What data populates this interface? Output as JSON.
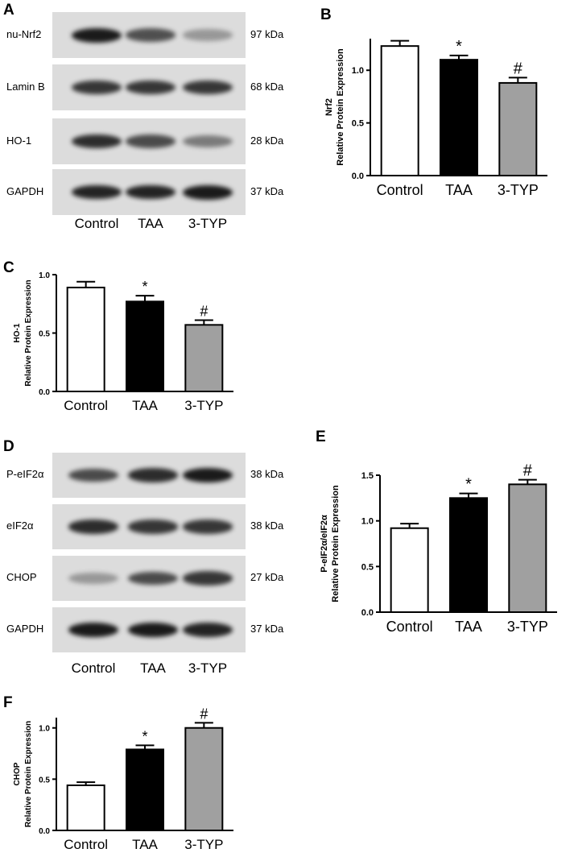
{
  "panel_letters": [
    "A",
    "B",
    "C",
    "D",
    "E",
    "F"
  ],
  "blot_A": {
    "lanes": [
      "Control",
      "TAA",
      "3-TYP"
    ],
    "rows": [
      {
        "protein": "nu-Nrf2",
        "kda": "97 kDa",
        "band_intensity": [
          1.0,
          0.72,
          0.35
        ]
      },
      {
        "protein": "Lamin B",
        "kda": "68 kDa",
        "band_intensity": [
          0.85,
          0.85,
          0.85
        ]
      },
      {
        "protein": "HO-1",
        "kda": "28 kDa",
        "band_intensity": [
          0.9,
          0.75,
          0.5
        ]
      },
      {
        "protein": "GAPDH",
        "kda": "37 kDa",
        "band_intensity": [
          0.95,
          0.95,
          1.0
        ]
      }
    ]
  },
  "blot_D": {
    "lanes": [
      "Control",
      "TAA",
      "3-TYP"
    ],
    "rows": [
      {
        "protein": "P-eIF2α",
        "kda": "38 kDa",
        "band_intensity": [
          0.75,
          0.9,
          1.0
        ]
      },
      {
        "protein": "eIF2α",
        "kda": "38 kDa",
        "band_intensity": [
          0.9,
          0.85,
          0.85
        ]
      },
      {
        "protein": "CHOP",
        "kda": "27 kDa",
        "band_intensity": [
          0.35,
          0.75,
          0.85
        ]
      },
      {
        "protein": "GAPDH",
        "kda": "37 kDa",
        "band_intensity": [
          1.0,
          1.0,
          0.95
        ]
      }
    ]
  },
  "chart_data": [
    {
      "panel": "B",
      "type": "bar",
      "categories": [
        "Control",
        "TAA",
        "3-TYP"
      ],
      "values": [
        1.23,
        1.1,
        0.88
      ],
      "errors": [
        0.05,
        0.04,
        0.05
      ],
      "annotations": [
        "",
        "*",
        "#"
      ],
      "fill_colors": [
        "#ffffff",
        "#000000",
        "#a0a0a0"
      ],
      "ylabel_lines": [
        "Nrf2",
        "Relative Protein Expression"
      ],
      "ylim": [
        0,
        1.3
      ],
      "yticks": [
        0.0,
        0.5,
        1.0
      ],
      "tick_labels": [
        "0.0",
        "0.5",
        "1.0"
      ]
    },
    {
      "panel": "C",
      "type": "bar",
      "categories": [
        "Control",
        "TAA",
        "3-TYP"
      ],
      "values": [
        0.89,
        0.77,
        0.57
      ],
      "errors": [
        0.05,
        0.05,
        0.04
      ],
      "annotations": [
        "",
        "*",
        "#"
      ],
      "fill_colors": [
        "#ffffff",
        "#000000",
        "#a0a0a0"
      ],
      "ylabel_lines": [
        "HO-1",
        "Relative Protein Expression"
      ],
      "ylim": [
        0,
        1.0
      ],
      "yticks": [
        0.0,
        0.5,
        1.0
      ],
      "tick_labels": [
        "0.0",
        "0.5",
        "1.0"
      ]
    },
    {
      "panel": "E",
      "type": "bar",
      "categories": [
        "Control",
        "TAA",
        "3-TYP"
      ],
      "values": [
        0.92,
        1.25,
        1.4
      ],
      "errors": [
        0.05,
        0.05,
        0.05
      ],
      "annotations": [
        "",
        "*",
        "#"
      ],
      "fill_colors": [
        "#ffffff",
        "#000000",
        "#a0a0a0"
      ],
      "ylabel_lines": [
        "P-eIF2α/eIF2α",
        "Relative Protein Expression"
      ],
      "ylim": [
        0,
        1.5
      ],
      "yticks": [
        0.0,
        0.5,
        1.0,
        1.5
      ],
      "tick_labels": [
        "0.0",
        "0.5",
        "1.0",
        "1.5"
      ]
    },
    {
      "panel": "F",
      "type": "bar",
      "categories": [
        "Control",
        "TAA",
        "3-TYP"
      ],
      "values": [
        0.44,
        0.79,
        1.0
      ],
      "errors": [
        0.03,
        0.04,
        0.05
      ],
      "annotations": [
        "",
        "*",
        "#"
      ],
      "fill_colors": [
        "#ffffff",
        "#000000",
        "#a0a0a0"
      ],
      "ylabel_lines": [
        "CHOP",
        "Relative Protein Expression"
      ],
      "ylim": [
        0,
        1.1
      ],
      "yticks": [
        0.0,
        0.5,
        1.0
      ],
      "tick_labels": [
        "0.0",
        "0.5",
        "1.0"
      ]
    }
  ]
}
